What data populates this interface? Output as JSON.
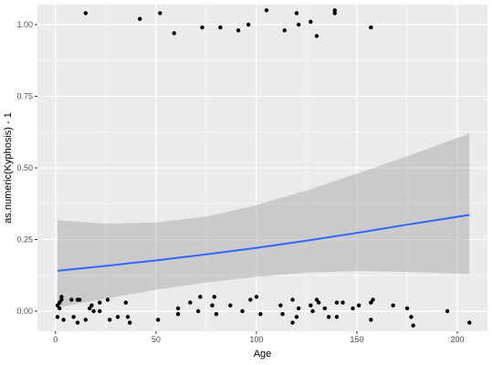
{
  "chart_data": {
    "type": "scatter",
    "xlabel": "Age",
    "ylabel": "as.numeric(Kyphosis) - 1",
    "xlim": [
      -9,
      215
    ],
    "ylim": [
      -0.07,
      1.07
    ],
    "x_ticks": [
      0,
      50,
      100,
      150,
      200
    ],
    "x_tick_labels": [
      "0",
      "50",
      "100",
      "150",
      "200"
    ],
    "y_ticks": [
      0.0,
      0.25,
      0.5,
      0.75,
      1.0
    ],
    "y_tick_labels": [
      "0.00",
      "0.25",
      "0.50",
      "0.75",
      "1.00"
    ],
    "grid": true,
    "legend": "none",
    "colors": {
      "panel": "#ebebeb",
      "grid": "#ffffff",
      "points": "#000000",
      "smooth_line": "#3366ff",
      "ribbon": "#999999"
    },
    "series": [
      {
        "kind": "points",
        "points": [
          [
            15,
            1.04
          ],
          [
            42,
            1.02
          ],
          [
            52,
            1.04
          ],
          [
            59,
            0.97
          ],
          [
            73,
            0.99
          ],
          [
            82,
            0.99
          ],
          [
            91,
            0.98
          ],
          [
            96,
            1.0
          ],
          [
            105,
            1.05
          ],
          [
            114,
            0.98
          ],
          [
            120,
            1.04
          ],
          [
            121,
            1.0
          ],
          [
            127,
            1.01
          ],
          [
            130,
            0.96
          ],
          [
            139,
            1.04
          ],
          [
            139,
            1.05
          ],
          [
            157,
            0.99
          ],
          [
            1,
            0.02
          ],
          [
            1,
            -0.02
          ],
          [
            2,
            0.01
          ],
          [
            2,
            0.03
          ],
          [
            3,
            0.04
          ],
          [
            3,
            0.05
          ],
          [
            4,
            -0.03
          ],
          [
            8,
            0.04
          ],
          [
            9,
            -0.02
          ],
          [
            11,
            0.04
          ],
          [
            11,
            -0.04
          ],
          [
            12,
            0.04
          ],
          [
            15,
            -0.03
          ],
          [
            17,
            0.01
          ],
          [
            18,
            0.02
          ],
          [
            19,
            0.0
          ],
          [
            22,
            0.0
          ],
          [
            22,
            0.03
          ],
          [
            26,
            0.04
          ],
          [
            27,
            -0.03
          ],
          [
            31,
            -0.02
          ],
          [
            35,
            0.03
          ],
          [
            36,
            -0.02
          ],
          [
            37,
            -0.04
          ],
          [
            51,
            -0.03
          ],
          [
            61,
            -0.01
          ],
          [
            61,
            0.01
          ],
          [
            67,
            0.03
          ],
          [
            71,
            0.0
          ],
          [
            72,
            0.05
          ],
          [
            78,
            0.02
          ],
          [
            79,
            0.05
          ],
          [
            80,
            -0.01
          ],
          [
            87,
            0.02
          ],
          [
            93,
            0.0
          ],
          [
            97,
            0.04
          ],
          [
            100,
            0.05
          ],
          [
            102,
            -0.01
          ],
          [
            112,
            0.02
          ],
          [
            113,
            -0.01
          ],
          [
            118,
            -0.04
          ],
          [
            118,
            0.04
          ],
          [
            120,
            -0.02
          ],
          [
            121,
            0.01
          ],
          [
            127,
            0.02
          ],
          [
            128,
            0.0
          ],
          [
            130,
            0.04
          ],
          [
            131,
            0.03
          ],
          [
            134,
            0.01
          ],
          [
            136,
            -0.02
          ],
          [
            140,
            0.03
          ],
          [
            140,
            -0.02
          ],
          [
            143,
            0.03
          ],
          [
            148,
            0.01
          ],
          [
            151,
            0.02
          ],
          [
            157,
            -0.03
          ],
          [
            157,
            0.03
          ],
          [
            158,
            0.04
          ],
          [
            168,
            0.02
          ],
          [
            175,
            0.01
          ],
          [
            177,
            -0.02
          ],
          [
            178,
            -0.05
          ],
          [
            195,
            0.0
          ],
          [
            206,
            -0.04
          ]
        ]
      },
      {
        "kind": "smooth",
        "x": [
          1,
          25,
          50,
          75,
          100,
          125,
          150,
          175,
          206
        ],
        "fit": [
          0.141,
          0.158,
          0.177,
          0.198,
          0.221,
          0.246,
          0.273,
          0.302,
          0.336
        ],
        "lower": [
          0.013,
          0.044,
          0.075,
          0.1,
          0.12,
          0.134,
          0.14,
          0.137,
          0.13
        ],
        "upper": [
          0.318,
          0.305,
          0.31,
          0.33,
          0.37,
          0.421,
          0.48,
          0.54,
          0.62
        ]
      }
    ]
  }
}
